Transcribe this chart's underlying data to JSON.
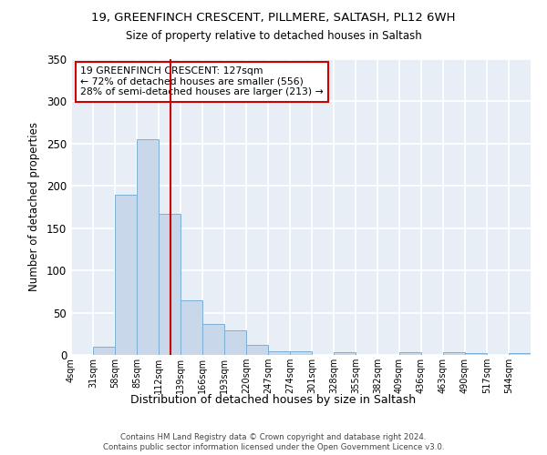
{
  "title1": "19, GREENFINCH CRESCENT, PILLMERE, SALTASH, PL12 6WH",
  "title2": "Size of property relative to detached houses in Saltash",
  "xlabel": "Distribution of detached houses by size in Saltash",
  "ylabel": "Number of detached properties",
  "bin_labels": [
    "4sqm",
    "31sqm",
    "58sqm",
    "85sqm",
    "112sqm",
    "139sqm",
    "166sqm",
    "193sqm",
    "220sqm",
    "247sqm",
    "274sqm",
    "301sqm",
    "328sqm",
    "355sqm",
    "382sqm",
    "409sqm",
    "436sqm",
    "463sqm",
    "490sqm",
    "517sqm",
    "544sqm"
  ],
  "bin_edges": [
    4,
    31,
    58,
    85,
    112,
    139,
    166,
    193,
    220,
    247,
    274,
    301,
    328,
    355,
    382,
    409,
    436,
    463,
    490,
    517,
    544
  ],
  "bar_heights": [
    0,
    10,
    190,
    255,
    167,
    65,
    37,
    29,
    12,
    4,
    4,
    0,
    3,
    0,
    0,
    3,
    0,
    3,
    2,
    0,
    2
  ],
  "bar_color": "#c8d8ea",
  "bar_edgecolor": "#7bafd4",
  "vline_x": 127,
  "vline_color": "#cc0000",
  "annotation_text": "19 GREENFINCH CRESCENT: 127sqm\n← 72% of detached houses are smaller (556)\n28% of semi-detached houses are larger (213) →",
  "annotation_box_edgecolor": "#cc0000",
  "annotation_box_facecolor": "#ffffff",
  "ylim": [
    0,
    350
  ],
  "yticks": [
    0,
    50,
    100,
    150,
    200,
    250,
    300,
    350
  ],
  "footer1": "Contains HM Land Registry data © Crown copyright and database right 2024.",
  "footer2": "Contains public sector information licensed under the Open Government Licence v3.0."
}
